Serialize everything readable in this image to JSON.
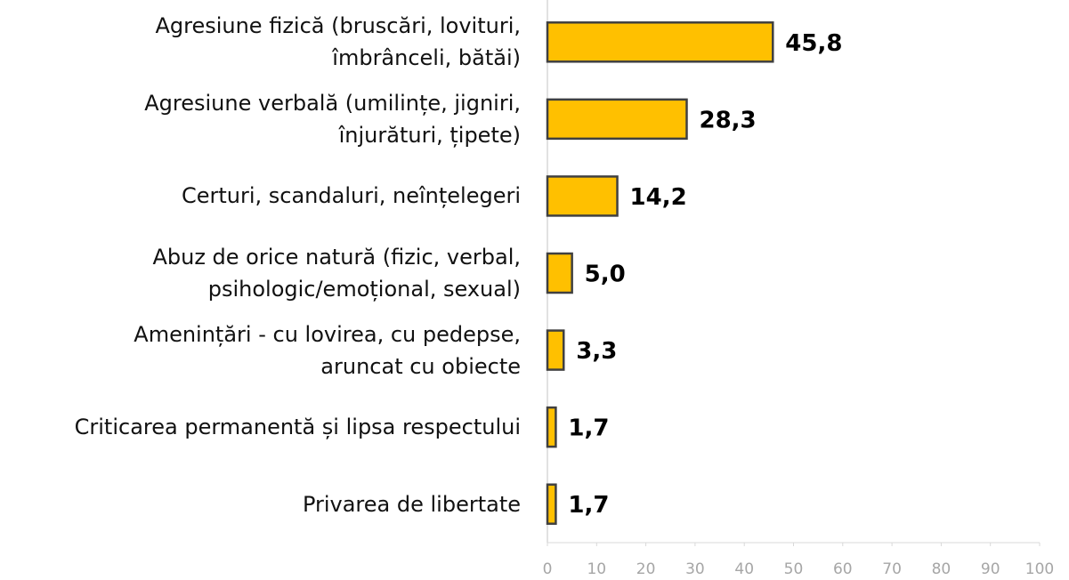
{
  "chart_data": {
    "type": "barh",
    "categories": [
      "Agresiune fizică (bruscări, lovituri,\nîmbrânceli, bătăi)",
      "Agresiune verbală (umilințe, jigniri,\nînjurături, țipete)",
      "Certuri, scandaluri, neînțelegeri",
      "Abuz de orice natură (fizic, verbal,\npsihologic/emoțional, sexual)",
      "Amenințări - cu lovirea, cu pedepse,\naruncat cu obiecte",
      "Criticarea permanentă și lipsa respectului",
      "Privarea de libertate"
    ],
    "values": [
      45.8,
      28.3,
      14.2,
      5.0,
      3.3,
      1.7,
      1.7
    ],
    "value_labels": [
      "45,8",
      "28,3",
      "14,2",
      "5,0",
      "3,3",
      "1,7",
      "1,7"
    ],
    "color": "#FFC000",
    "xlim": [
      0,
      100
    ],
    "xticks": [
      0,
      10,
      20,
      30,
      40,
      50,
      60,
      70,
      80,
      90,
      100
    ]
  }
}
